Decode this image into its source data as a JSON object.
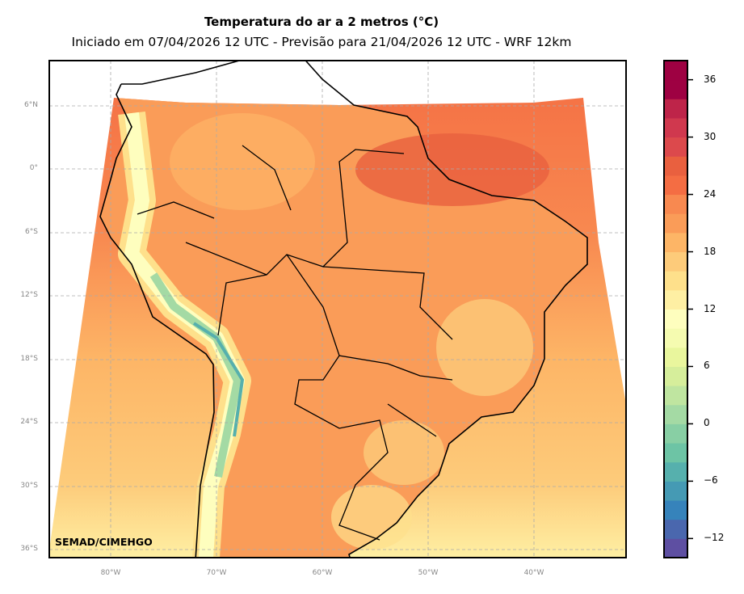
{
  "title": "Temperatura do ar a 2 metros (°C)",
  "subtitle": "Iniciado em 07/04/2026 12 UTC - Previsão para 21/04/2026 12 UTC - WRF 12km",
  "credit": "SEMAD/CIMEHGO",
  "lat_labels": [
    "6°N",
    "0°",
    "6°S",
    "12°S",
    "18°S",
    "24°S",
    "30°S",
    "36°S"
  ],
  "lon_labels": [
    "80°W",
    "70°W",
    "60°W",
    "50°W",
    "40°W"
  ],
  "colorbar": {
    "unit": "°C",
    "min": -14,
    "max": 38,
    "step": 2,
    "ticks": [
      "36",
      "30",
      "24",
      "18",
      "12",
      "6",
      "0",
      "−6",
      "−12"
    ],
    "colors": [
      "#5e4fa2",
      "#4a67ae",
      "#3683bb",
      "#459ab4",
      "#56b0ad",
      "#6dc4a5",
      "#88cfa4",
      "#a4daa4",
      "#bfe5a0",
      "#d6ee9b",
      "#e9f69d",
      "#f5fbb0",
      "#fefebe",
      "#feefa3",
      "#fee08b",
      "#fdcb7a",
      "#fdb566",
      "#fa9c58",
      "#f88950",
      "#f46d43",
      "#e9603f",
      "#dc494c",
      "#d0384e",
      "#be2449",
      "#9e0142",
      "#9e0142"
    ]
  }
}
